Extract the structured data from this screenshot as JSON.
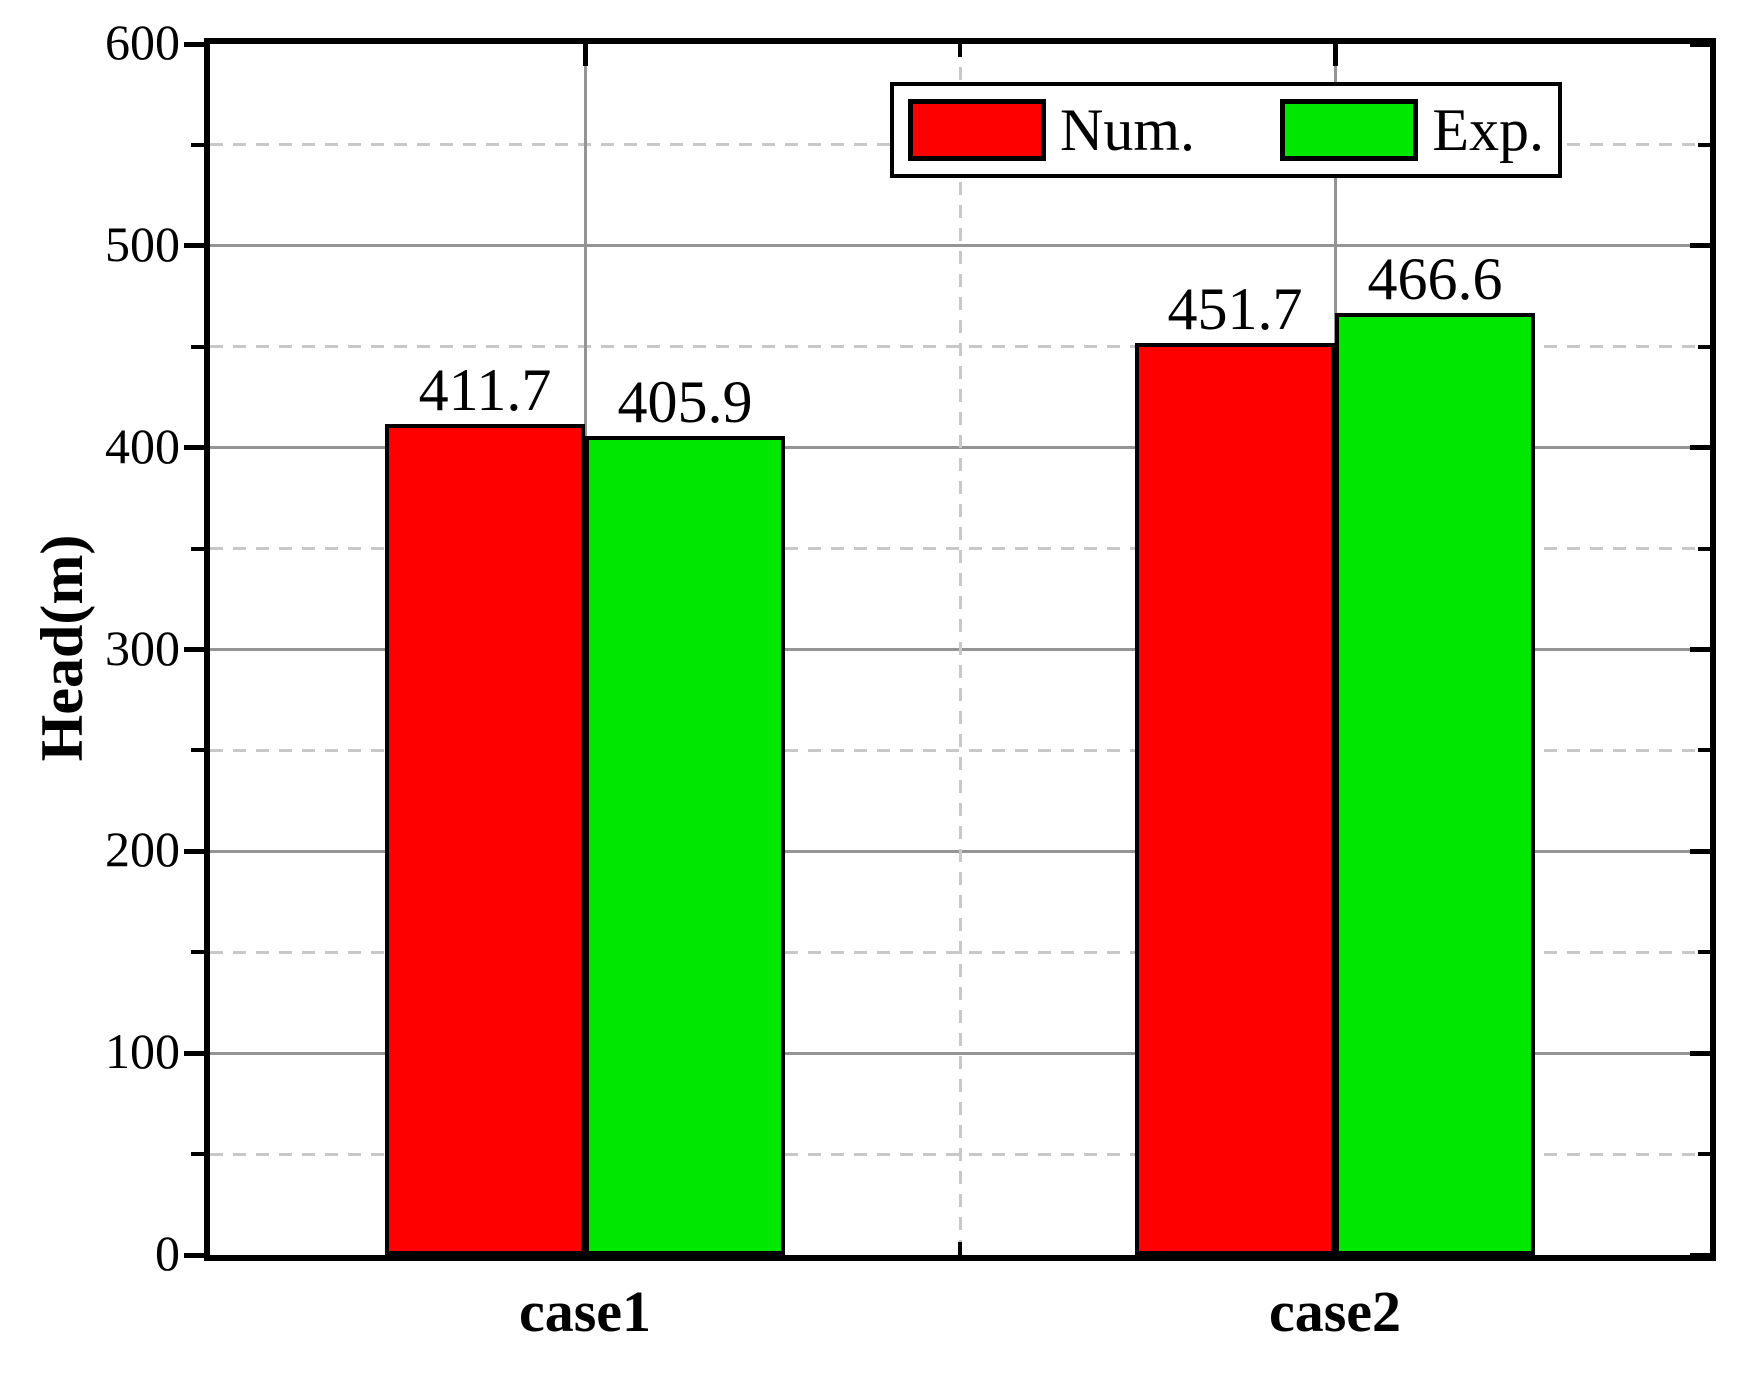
{
  "chart_data": {
    "type": "bar",
    "title": "",
    "categories": [
      "case1",
      "case2"
    ],
    "series": [
      {
        "name": "Num.",
        "color": "#fe0000",
        "values": [
          411.7,
          451.7
        ]
      },
      {
        "name": "Exp.",
        "color": "#00e800",
        "values": [
          405.9,
          466.6
        ]
      }
    ],
    "value_labels": [
      "411.7",
      "405.9",
      "451.7",
      "466.6"
    ],
    "ylabel": "Head(m)",
    "xlabel": "",
    "ylim": [
      0,
      600
    ],
    "y_major_step": 100,
    "y_minor_step": 50,
    "y_tick_labels": [
      "600",
      "500",
      "400",
      "300",
      "200",
      "100",
      "0"
    ],
    "grid": {
      "horizontal_major": "solid",
      "horizontal_minor": "dashed",
      "vertical_solid_at_category_centers": true,
      "vertical_dashed_at_group_midpoint": true
    },
    "legend": {
      "labels": [
        "Num.",
        "Exp."
      ],
      "position": "top-right-inside"
    }
  },
  "colors": {
    "bar_num": "#fe0000",
    "bar_exp": "#00e800",
    "axis": "#000000",
    "grid_major": "#949494",
    "grid_minor": "#c8c8c8",
    "background": "#ffffff"
  }
}
